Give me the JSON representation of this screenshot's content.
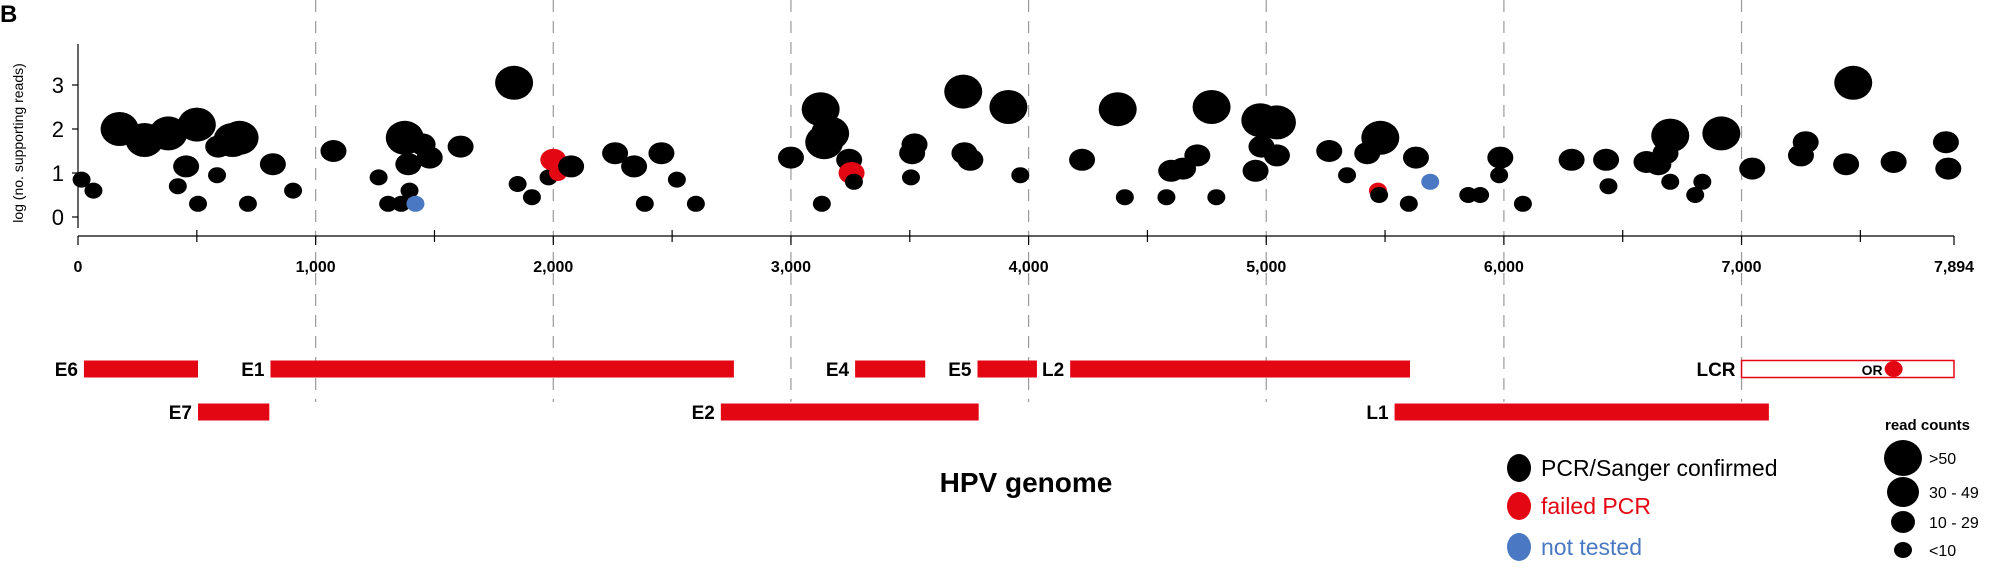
{
  "panel_label": "B",
  "chart_data": {
    "type": "scatter",
    "title": "",
    "xlabel": "HPV genome",
    "ylabel": "log (no. supporting reads)",
    "xlim": [
      0,
      7894
    ],
    "ylim": [
      -0.3,
      3.5
    ],
    "x_ticks": [
      0,
      1000,
      2000,
      3000,
      4000,
      5000,
      6000,
      7000,
      7894
    ],
    "x_tick_labels": [
      "0",
      "1,000",
      "2,000",
      "3,000",
      "4,000",
      "5,000",
      "6,000",
      "7,000",
      "7,894"
    ],
    "x_minor_ticks": [
      500,
      1500,
      2500,
      3500,
      4500,
      5500,
      6500,
      7500
    ],
    "y_ticks": [
      0,
      1,
      2,
      3
    ],
    "y_tick_labels": [
      "0",
      "1",
      "2",
      "3"
    ],
    "vertical_gridlines": "dashed at every 1,000 bp",
    "status_legend": [
      {
        "status": "confirmed",
        "label": "PCR/Sanger confirmed",
        "color": "#000000"
      },
      {
        "status": "failed",
        "label": "failed PCR",
        "color": "#e30613"
      },
      {
        "status": "not_tested",
        "label": "not tested",
        "color": "#4a78c2"
      }
    ],
    "size_legend_title": "read counts",
    "size_legend": [
      {
        "label": ">50",
        "size_class": 4
      },
      {
        "label": "30 - 49",
        "size_class": 3
      },
      {
        "label": "10 - 29",
        "size_class": 2
      },
      {
        "label": "<10",
        "size_class": 1
      }
    ],
    "points": [
      {
        "x": 15,
        "y": 0.85,
        "size_class": 1,
        "status": "confirmed"
      },
      {
        "x": 65,
        "y": 0.6,
        "size_class": 1,
        "status": "confirmed"
      },
      {
        "x": 175,
        "y": 2.0,
        "size_class": 3,
        "status": "confirmed"
      },
      {
        "x": 280,
        "y": 1.75,
        "size_class": 3,
        "status": "confirmed"
      },
      {
        "x": 380,
        "y": 1.9,
        "size_class": 3,
        "status": "confirmed"
      },
      {
        "x": 420,
        "y": 0.7,
        "size_class": 1,
        "status": "confirmed"
      },
      {
        "x": 455,
        "y": 1.15,
        "size_class": 2,
        "status": "confirmed"
      },
      {
        "x": 500,
        "y": 2.1,
        "size_class": 3,
        "status": "confirmed"
      },
      {
        "x": 505,
        "y": 0.3,
        "size_class": 1,
        "status": "confirmed"
      },
      {
        "x": 590,
        "y": 1.6,
        "size_class": 2,
        "status": "confirmed"
      },
      {
        "x": 585,
        "y": 0.95,
        "size_class": 1,
        "status": "confirmed"
      },
      {
        "x": 650,
        "y": 1.75,
        "size_class": 3,
        "status": "confirmed"
      },
      {
        "x": 680,
        "y": 1.8,
        "size_class": 3,
        "status": "confirmed"
      },
      {
        "x": 715,
        "y": 0.3,
        "size_class": 1,
        "status": "confirmed"
      },
      {
        "x": 820,
        "y": 1.2,
        "size_class": 2,
        "status": "confirmed"
      },
      {
        "x": 905,
        "y": 0.6,
        "size_class": 1,
        "status": "confirmed"
      },
      {
        "x": 1075,
        "y": 1.5,
        "size_class": 2,
        "status": "confirmed"
      },
      {
        "x": 1265,
        "y": 0.9,
        "size_class": 1,
        "status": "confirmed"
      },
      {
        "x": 1305,
        "y": 0.3,
        "size_class": 1,
        "status": "confirmed"
      },
      {
        "x": 1360,
        "y": 0.3,
        "size_class": 1,
        "status": "confirmed"
      },
      {
        "x": 1375,
        "y": 1.8,
        "size_class": 3,
        "status": "confirmed"
      },
      {
        "x": 1395,
        "y": 0.6,
        "size_class": 1,
        "status": "confirmed"
      },
      {
        "x": 1390,
        "y": 1.2,
        "size_class": 2,
        "status": "confirmed"
      },
      {
        "x": 1420,
        "y": 0.3,
        "size_class": 1,
        "status": "not_tested"
      },
      {
        "x": 1450,
        "y": 1.65,
        "size_class": 2,
        "status": "confirmed"
      },
      {
        "x": 1480,
        "y": 1.35,
        "size_class": 2,
        "status": "confirmed"
      },
      {
        "x": 1610,
        "y": 1.6,
        "size_class": 2,
        "status": "confirmed"
      },
      {
        "x": 1835,
        "y": 3.05,
        "size_class": 3,
        "status": "confirmed"
      },
      {
        "x": 1850,
        "y": 0.75,
        "size_class": 1,
        "status": "confirmed"
      },
      {
        "x": 1910,
        "y": 0.45,
        "size_class": 1,
        "status": "confirmed"
      },
      {
        "x": 1980,
        "y": 0.9,
        "size_class": 1,
        "status": "confirmed"
      },
      {
        "x": 2000,
        "y": 1.3,
        "size_class": 2,
        "status": "failed"
      },
      {
        "x": 2020,
        "y": 1.0,
        "size_class": 1,
        "status": "failed"
      },
      {
        "x": 2075,
        "y": 1.15,
        "size_class": 2,
        "status": "confirmed"
      },
      {
        "x": 2260,
        "y": 1.45,
        "size_class": 2,
        "status": "confirmed"
      },
      {
        "x": 2340,
        "y": 1.15,
        "size_class": 2,
        "status": "confirmed"
      },
      {
        "x": 2385,
        "y": 0.3,
        "size_class": 1,
        "status": "confirmed"
      },
      {
        "x": 2455,
        "y": 1.45,
        "size_class": 2,
        "status": "confirmed"
      },
      {
        "x": 2520,
        "y": 0.85,
        "size_class": 1,
        "status": "confirmed"
      },
      {
        "x": 2600,
        "y": 0.3,
        "size_class": 1,
        "status": "confirmed"
      },
      {
        "x": 3000,
        "y": 1.35,
        "size_class": 2,
        "status": "confirmed"
      },
      {
        "x": 3125,
        "y": 2.45,
        "size_class": 3,
        "status": "confirmed"
      },
      {
        "x": 3140,
        "y": 1.7,
        "size_class": 3,
        "status": "confirmed"
      },
      {
        "x": 3130,
        "y": 0.3,
        "size_class": 1,
        "status": "confirmed"
      },
      {
        "x": 3165,
        "y": 1.9,
        "size_class": 3,
        "status": "confirmed"
      },
      {
        "x": 3245,
        "y": 1.3,
        "size_class": 2,
        "status": "confirmed"
      },
      {
        "x": 3255,
        "y": 1.0,
        "size_class": 2,
        "status": "failed"
      },
      {
        "x": 3265,
        "y": 0.8,
        "size_class": 1,
        "status": "confirmed"
      },
      {
        "x": 3510,
        "y": 1.45,
        "size_class": 2,
        "status": "confirmed"
      },
      {
        "x": 3520,
        "y": 1.65,
        "size_class": 2,
        "status": "confirmed"
      },
      {
        "x": 3505,
        "y": 0.9,
        "size_class": 1,
        "status": "confirmed"
      },
      {
        "x": 3725,
        "y": 2.85,
        "size_class": 3,
        "status": "confirmed"
      },
      {
        "x": 3730,
        "y": 1.45,
        "size_class": 2,
        "status": "confirmed"
      },
      {
        "x": 3755,
        "y": 1.3,
        "size_class": 2,
        "status": "confirmed"
      },
      {
        "x": 3915,
        "y": 2.5,
        "size_class": 3,
        "status": "confirmed"
      },
      {
        "x": 3965,
        "y": 0.95,
        "size_class": 1,
        "status": "confirmed"
      },
      {
        "x": 4225,
        "y": 1.3,
        "size_class": 2,
        "status": "confirmed"
      },
      {
        "x": 4375,
        "y": 2.45,
        "size_class": 3,
        "status": "confirmed"
      },
      {
        "x": 4405,
        "y": 0.45,
        "size_class": 1,
        "status": "confirmed"
      },
      {
        "x": 4580,
        "y": 0.45,
        "size_class": 1,
        "status": "confirmed"
      },
      {
        "x": 4600,
        "y": 1.05,
        "size_class": 2,
        "status": "confirmed"
      },
      {
        "x": 4650,
        "y": 1.1,
        "size_class": 2,
        "status": "confirmed"
      },
      {
        "x": 4710,
        "y": 1.4,
        "size_class": 2,
        "status": "confirmed"
      },
      {
        "x": 4770,
        "y": 2.5,
        "size_class": 3,
        "status": "confirmed"
      },
      {
        "x": 4790,
        "y": 0.45,
        "size_class": 1,
        "status": "confirmed"
      },
      {
        "x": 4955,
        "y": 1.05,
        "size_class": 2,
        "status": "confirmed"
      },
      {
        "x": 4975,
        "y": 2.2,
        "size_class": 3,
        "status": "confirmed"
      },
      {
        "x": 4980,
        "y": 1.6,
        "size_class": 2,
        "status": "confirmed"
      },
      {
        "x": 5045,
        "y": 2.15,
        "size_class": 3,
        "status": "confirmed"
      },
      {
        "x": 5045,
        "y": 1.4,
        "size_class": 2,
        "status": "confirmed"
      },
      {
        "x": 5265,
        "y": 1.5,
        "size_class": 2,
        "status": "confirmed"
      },
      {
        "x": 5340,
        "y": 0.95,
        "size_class": 1,
        "status": "confirmed"
      },
      {
        "x": 5425,
        "y": 1.45,
        "size_class": 2,
        "status": "confirmed"
      },
      {
        "x": 5480,
        "y": 1.8,
        "size_class": 3,
        "status": "confirmed"
      },
      {
        "x": 5470,
        "y": 0.6,
        "size_class": 1,
        "status": "failed"
      },
      {
        "x": 5475,
        "y": 0.5,
        "size_class": 1,
        "status": "confirmed"
      },
      {
        "x": 5630,
        "y": 1.35,
        "size_class": 2,
        "status": "confirmed"
      },
      {
        "x": 5600,
        "y": 0.3,
        "size_class": 1,
        "status": "confirmed"
      },
      {
        "x": 5690,
        "y": 0.8,
        "size_class": 1,
        "status": "not_tested"
      },
      {
        "x": 5850,
        "y": 0.5,
        "size_class": 1,
        "status": "confirmed"
      },
      {
        "x": 5900,
        "y": 0.5,
        "size_class": 1,
        "status": "confirmed"
      },
      {
        "x": 5985,
        "y": 1.35,
        "size_class": 2,
        "status": "confirmed"
      },
      {
        "x": 5980,
        "y": 0.95,
        "size_class": 1,
        "status": "confirmed"
      },
      {
        "x": 6080,
        "y": 0.3,
        "size_class": 1,
        "status": "confirmed"
      },
      {
        "x": 6285,
        "y": 1.3,
        "size_class": 2,
        "status": "confirmed"
      },
      {
        "x": 6430,
        "y": 1.3,
        "size_class": 2,
        "status": "confirmed"
      },
      {
        "x": 6440,
        "y": 0.7,
        "size_class": 1,
        "status": "confirmed"
      },
      {
        "x": 6600,
        "y": 1.25,
        "size_class": 2,
        "status": "confirmed"
      },
      {
        "x": 6650,
        "y": 1.2,
        "size_class": 2,
        "status": "confirmed"
      },
      {
        "x": 6680,
        "y": 1.45,
        "size_class": 2,
        "status": "confirmed"
      },
      {
        "x": 6700,
        "y": 1.85,
        "size_class": 3,
        "status": "confirmed"
      },
      {
        "x": 6700,
        "y": 0.8,
        "size_class": 1,
        "status": "confirmed"
      },
      {
        "x": 6805,
        "y": 0.5,
        "size_class": 1,
        "status": "confirmed"
      },
      {
        "x": 6835,
        "y": 0.8,
        "size_class": 1,
        "status": "confirmed"
      },
      {
        "x": 6915,
        "y": 1.9,
        "size_class": 3,
        "status": "confirmed"
      },
      {
        "x": 7045,
        "y": 1.1,
        "size_class": 2,
        "status": "confirmed"
      },
      {
        "x": 7250,
        "y": 1.4,
        "size_class": 2,
        "status": "confirmed"
      },
      {
        "x": 7270,
        "y": 1.7,
        "size_class": 2,
        "status": "confirmed"
      },
      {
        "x": 7440,
        "y": 1.2,
        "size_class": 2,
        "status": "confirmed"
      },
      {
        "x": 7470,
        "y": 3.05,
        "size_class": 3,
        "status": "confirmed"
      },
      {
        "x": 7640,
        "y": 1.25,
        "size_class": 2,
        "status": "confirmed"
      },
      {
        "x": 7860,
        "y": 1.7,
        "size_class": 2,
        "status": "confirmed"
      },
      {
        "x": 7870,
        "y": 1.1,
        "size_class": 2,
        "status": "confirmed"
      }
    ],
    "genes": [
      {
        "name": "E6",
        "start": 25,
        "end": 505,
        "row": 1,
        "label_side": "left"
      },
      {
        "name": "E7",
        "start": 505,
        "end": 805,
        "row": 2,
        "label_side": "left"
      },
      {
        "name": "E1",
        "start": 810,
        "end": 2760,
        "row": 1,
        "label_side": "left"
      },
      {
        "name": "E2",
        "start": 2705,
        "end": 3790,
        "row": 2,
        "label_side": "left"
      },
      {
        "name": "E4",
        "start": 3270,
        "end": 3565,
        "row": 1,
        "label_side": "left"
      },
      {
        "name": "E5",
        "start": 3785,
        "end": 4035,
        "row": 1,
        "label_side": "left"
      },
      {
        "name": "L2",
        "start": 4175,
        "end": 5605,
        "row": 1,
        "label_side": "left"
      },
      {
        "name": "L1",
        "start": 5540,
        "end": 7115,
        "row": 2,
        "label_side": "left"
      },
      {
        "name": "LCR",
        "start": 7000,
        "end": 7894,
        "row": 1,
        "label_side": "left",
        "outline": true
      }
    ],
    "origin": {
      "label": "OR",
      "x": 7640,
      "status": "failed"
    }
  }
}
